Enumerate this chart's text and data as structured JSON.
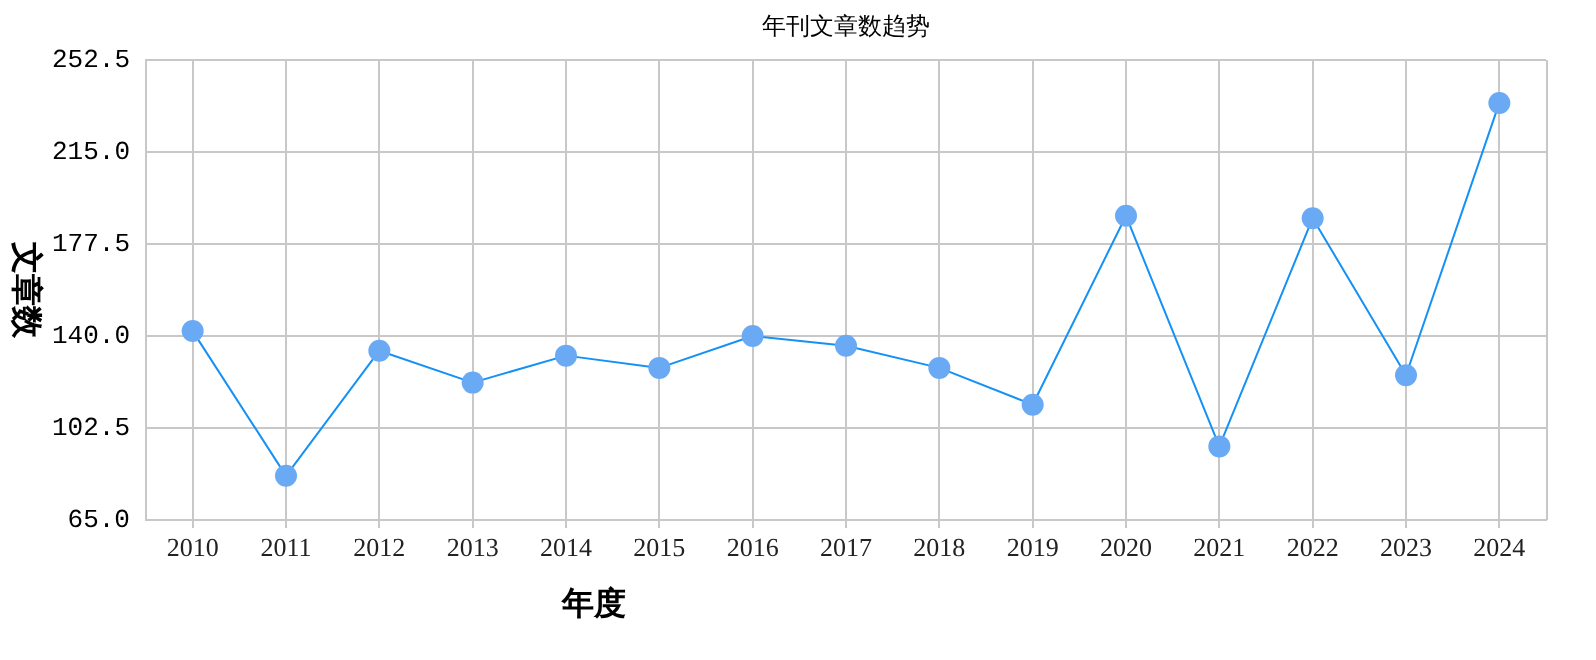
{
  "chart_data": {
    "type": "line",
    "title": "年刊文章数趋势",
    "xlabel": "年度",
    "ylabel": "文章数",
    "categories": [
      "2010",
      "2011",
      "2012",
      "2013",
      "2014",
      "2015",
      "2016",
      "2017",
      "2018",
      "2019",
      "2020",
      "2021",
      "2022",
      "2023",
      "2024"
    ],
    "series": [
      {
        "color": "#1591f5",
        "values": [
          142,
          83,
          134,
          121,
          132,
          127,
          140,
          136,
          127,
          112,
          189,
          95,
          188,
          124,
          235
        ]
      }
    ],
    "ylim": [
      65,
      252.5
    ],
    "yticks": [
      {
        "value": 65,
        "label": "65.0"
      },
      {
        "value": 102.5,
        "label": "102.5"
      },
      {
        "value": 140,
        "label": "140.0"
      },
      {
        "value": 177.5,
        "label": "177.5"
      },
      {
        "value": 215,
        "label": "215.0"
      },
      {
        "value": 252.5,
        "label": "252.5"
      }
    ],
    "grid": true,
    "legend": false,
    "marker": "circle",
    "line_style": "solid"
  }
}
